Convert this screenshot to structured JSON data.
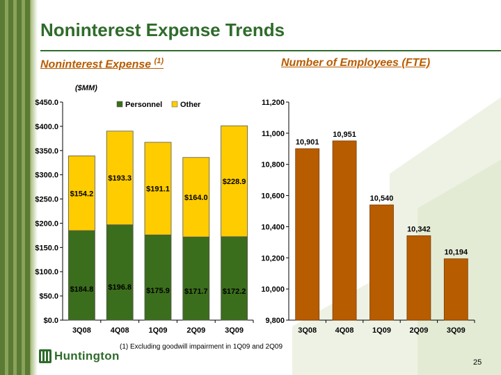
{
  "slide": {
    "title": "Noninterest Expense Trends",
    "page_number": "25",
    "footnote": "(1)   Excluding goodwill impairment in 1Q09 and 2Q09",
    "logo_text": "Huntington",
    "colors": {
      "brand_green": "#2f6b2b",
      "accent_orange": "#b85c00"
    }
  },
  "left_panel": {
    "subtitle": "Noninterest Expense",
    "subtitle_note": "(1)",
    "units": "($MM)"
  },
  "right_panel": {
    "subtitle": "Number of Employees (FTE)"
  },
  "chart_data": [
    {
      "type": "bar",
      "stacked": true,
      "categories": [
        "3Q08",
        "4Q08",
        "1Q09",
        "2Q09",
        "3Q09"
      ],
      "series": [
        {
          "name": "Personnel",
          "values": [
            184.8,
            196.8,
            175.9,
            171.7,
            172.2
          ],
          "labels": [
            "$184.8",
            "$196.8",
            "$175.9",
            "$171.7",
            "$172.2"
          ],
          "color": "#3b6e1c"
        },
        {
          "name": "Other",
          "values": [
            154.2,
            193.3,
            191.1,
            164.0,
            228.9
          ],
          "labels": [
            "$154.2",
            "$193.3",
            "$191.1",
            "$164.0",
            "$228.9"
          ],
          "color": "#ffcc00"
        }
      ],
      "ylim": [
        0,
        450
      ],
      "yticks": [
        "$0.0",
        "$50.0",
        "$100.0",
        "$150.0",
        "$200.0",
        "$250.0",
        "$300.0",
        "$350.0",
        "$400.0",
        "$450.0"
      ],
      "legend": "top",
      "grid": false
    },
    {
      "type": "bar",
      "categories": [
        "3Q08",
        "4Q08",
        "1Q09",
        "2Q09",
        "3Q09"
      ],
      "values": [
        10901,
        10951,
        10540,
        10342,
        10194
      ],
      "labels": [
        "10,901",
        "10,951",
        "10,540",
        "10,342",
        "10,194"
      ],
      "color": "#b85c00",
      "ylim": [
        9800,
        11200
      ],
      "yticks": [
        "9,800",
        "10,000",
        "10,200",
        "10,400",
        "10,600",
        "10,800",
        "11,000",
        "11,200"
      ],
      "grid": false
    }
  ]
}
